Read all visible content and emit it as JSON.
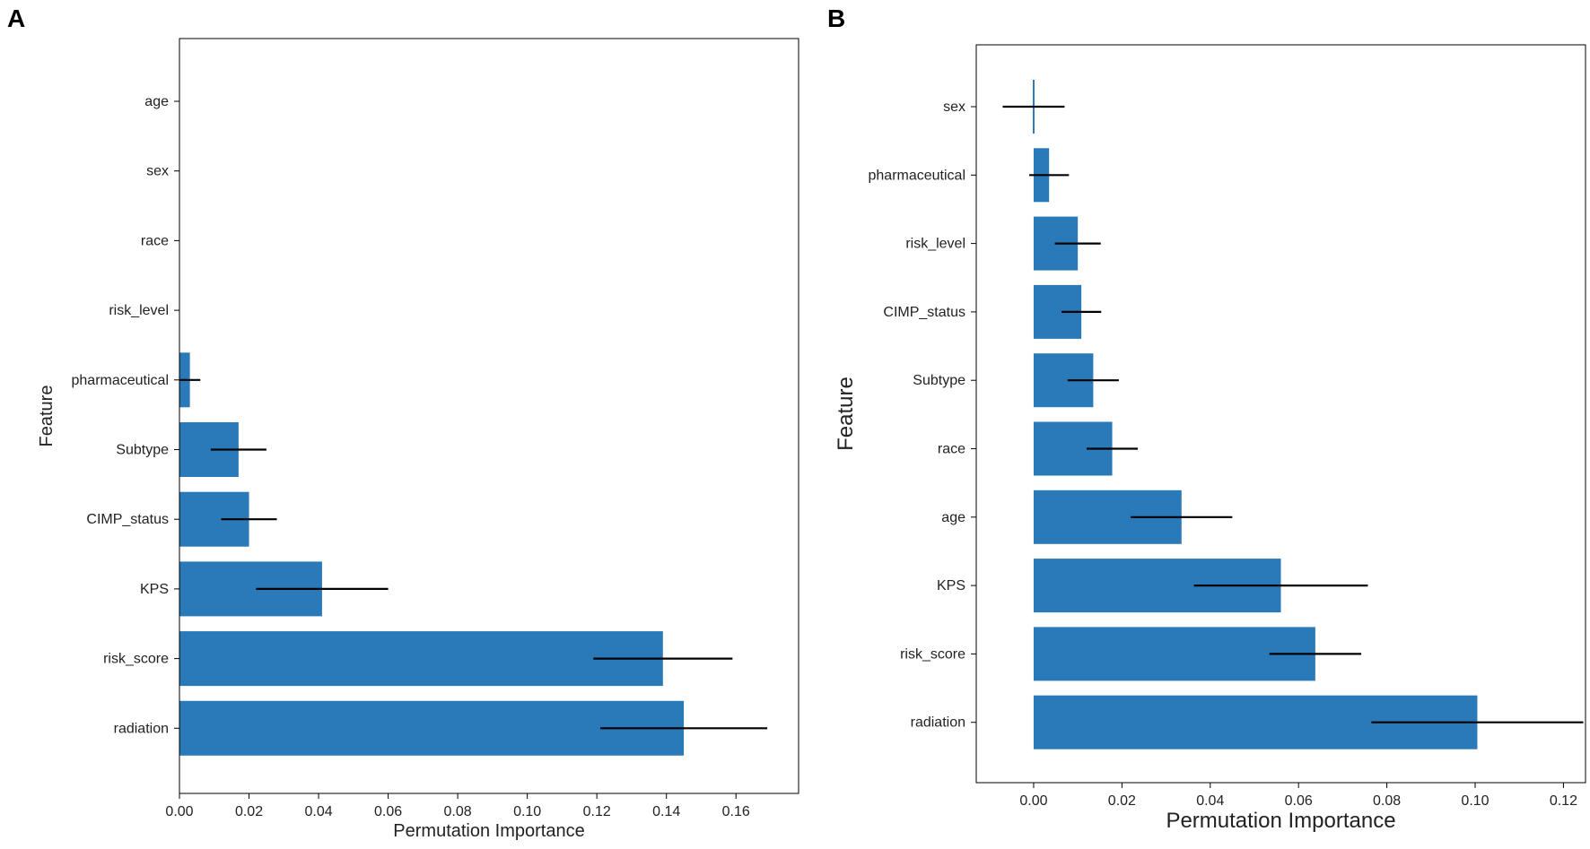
{
  "chart_data": [
    {
      "panel_label": "A",
      "type": "bar",
      "orientation": "horizontal",
      "xlabel": "Permutation Importance",
      "ylabel": "Feature",
      "xlim": [
        0,
        0.178
      ],
      "xticks": [
        "0.00",
        "0.02",
        "0.04",
        "0.06",
        "0.08",
        "0.10",
        "0.12",
        "0.14",
        "0.16"
      ],
      "xtick_values": [
        0,
        0.02,
        0.04,
        0.06,
        0.08,
        0.1,
        0.12,
        0.14,
        0.16
      ],
      "bar_color": "#2a7ab9",
      "categories": [
        "age",
        "sex",
        "race",
        "risk_level",
        "pharmaceutical",
        "Subtype",
        "CIMP_status",
        "KPS",
        "risk_score",
        "radiation"
      ],
      "values": [
        0,
        0,
        0,
        0,
        0.003,
        0.017,
        0.02,
        0.041,
        0.139,
        0.145
      ],
      "errors": [
        0,
        0,
        0,
        0,
        0.003,
        0.008,
        0.008,
        0.019,
        0.02,
        0.024
      ]
    },
    {
      "panel_label": "B",
      "type": "bar",
      "orientation": "horizontal",
      "xlabel": "Permutation Importance",
      "ylabel": "Feature",
      "xlim": [
        -0.013,
        0.125
      ],
      "xticks": [
        "0.00",
        "0.02",
        "0.04",
        "0.06",
        "0.08",
        "0.10",
        "0.12"
      ],
      "xtick_values": [
        0,
        0.02,
        0.04,
        0.06,
        0.08,
        0.1,
        0.12
      ],
      "bar_color": "#2a7ab9",
      "categories": [
        "sex",
        "pharmaceutical",
        "risk_level",
        "CIMP_status",
        "Subtype",
        "race",
        "age",
        "KPS",
        "risk_score",
        "radiation"
      ],
      "values": [
        0,
        0.0035,
        0.01,
        0.0108,
        0.0135,
        0.0178,
        0.0335,
        0.056,
        0.0638,
        0.1005
      ],
      "errors": [
        0.007,
        0.0045,
        0.0052,
        0.0045,
        0.0058,
        0.0058,
        0.0115,
        0.0197,
        0.0104,
        0.024
      ]
    }
  ]
}
